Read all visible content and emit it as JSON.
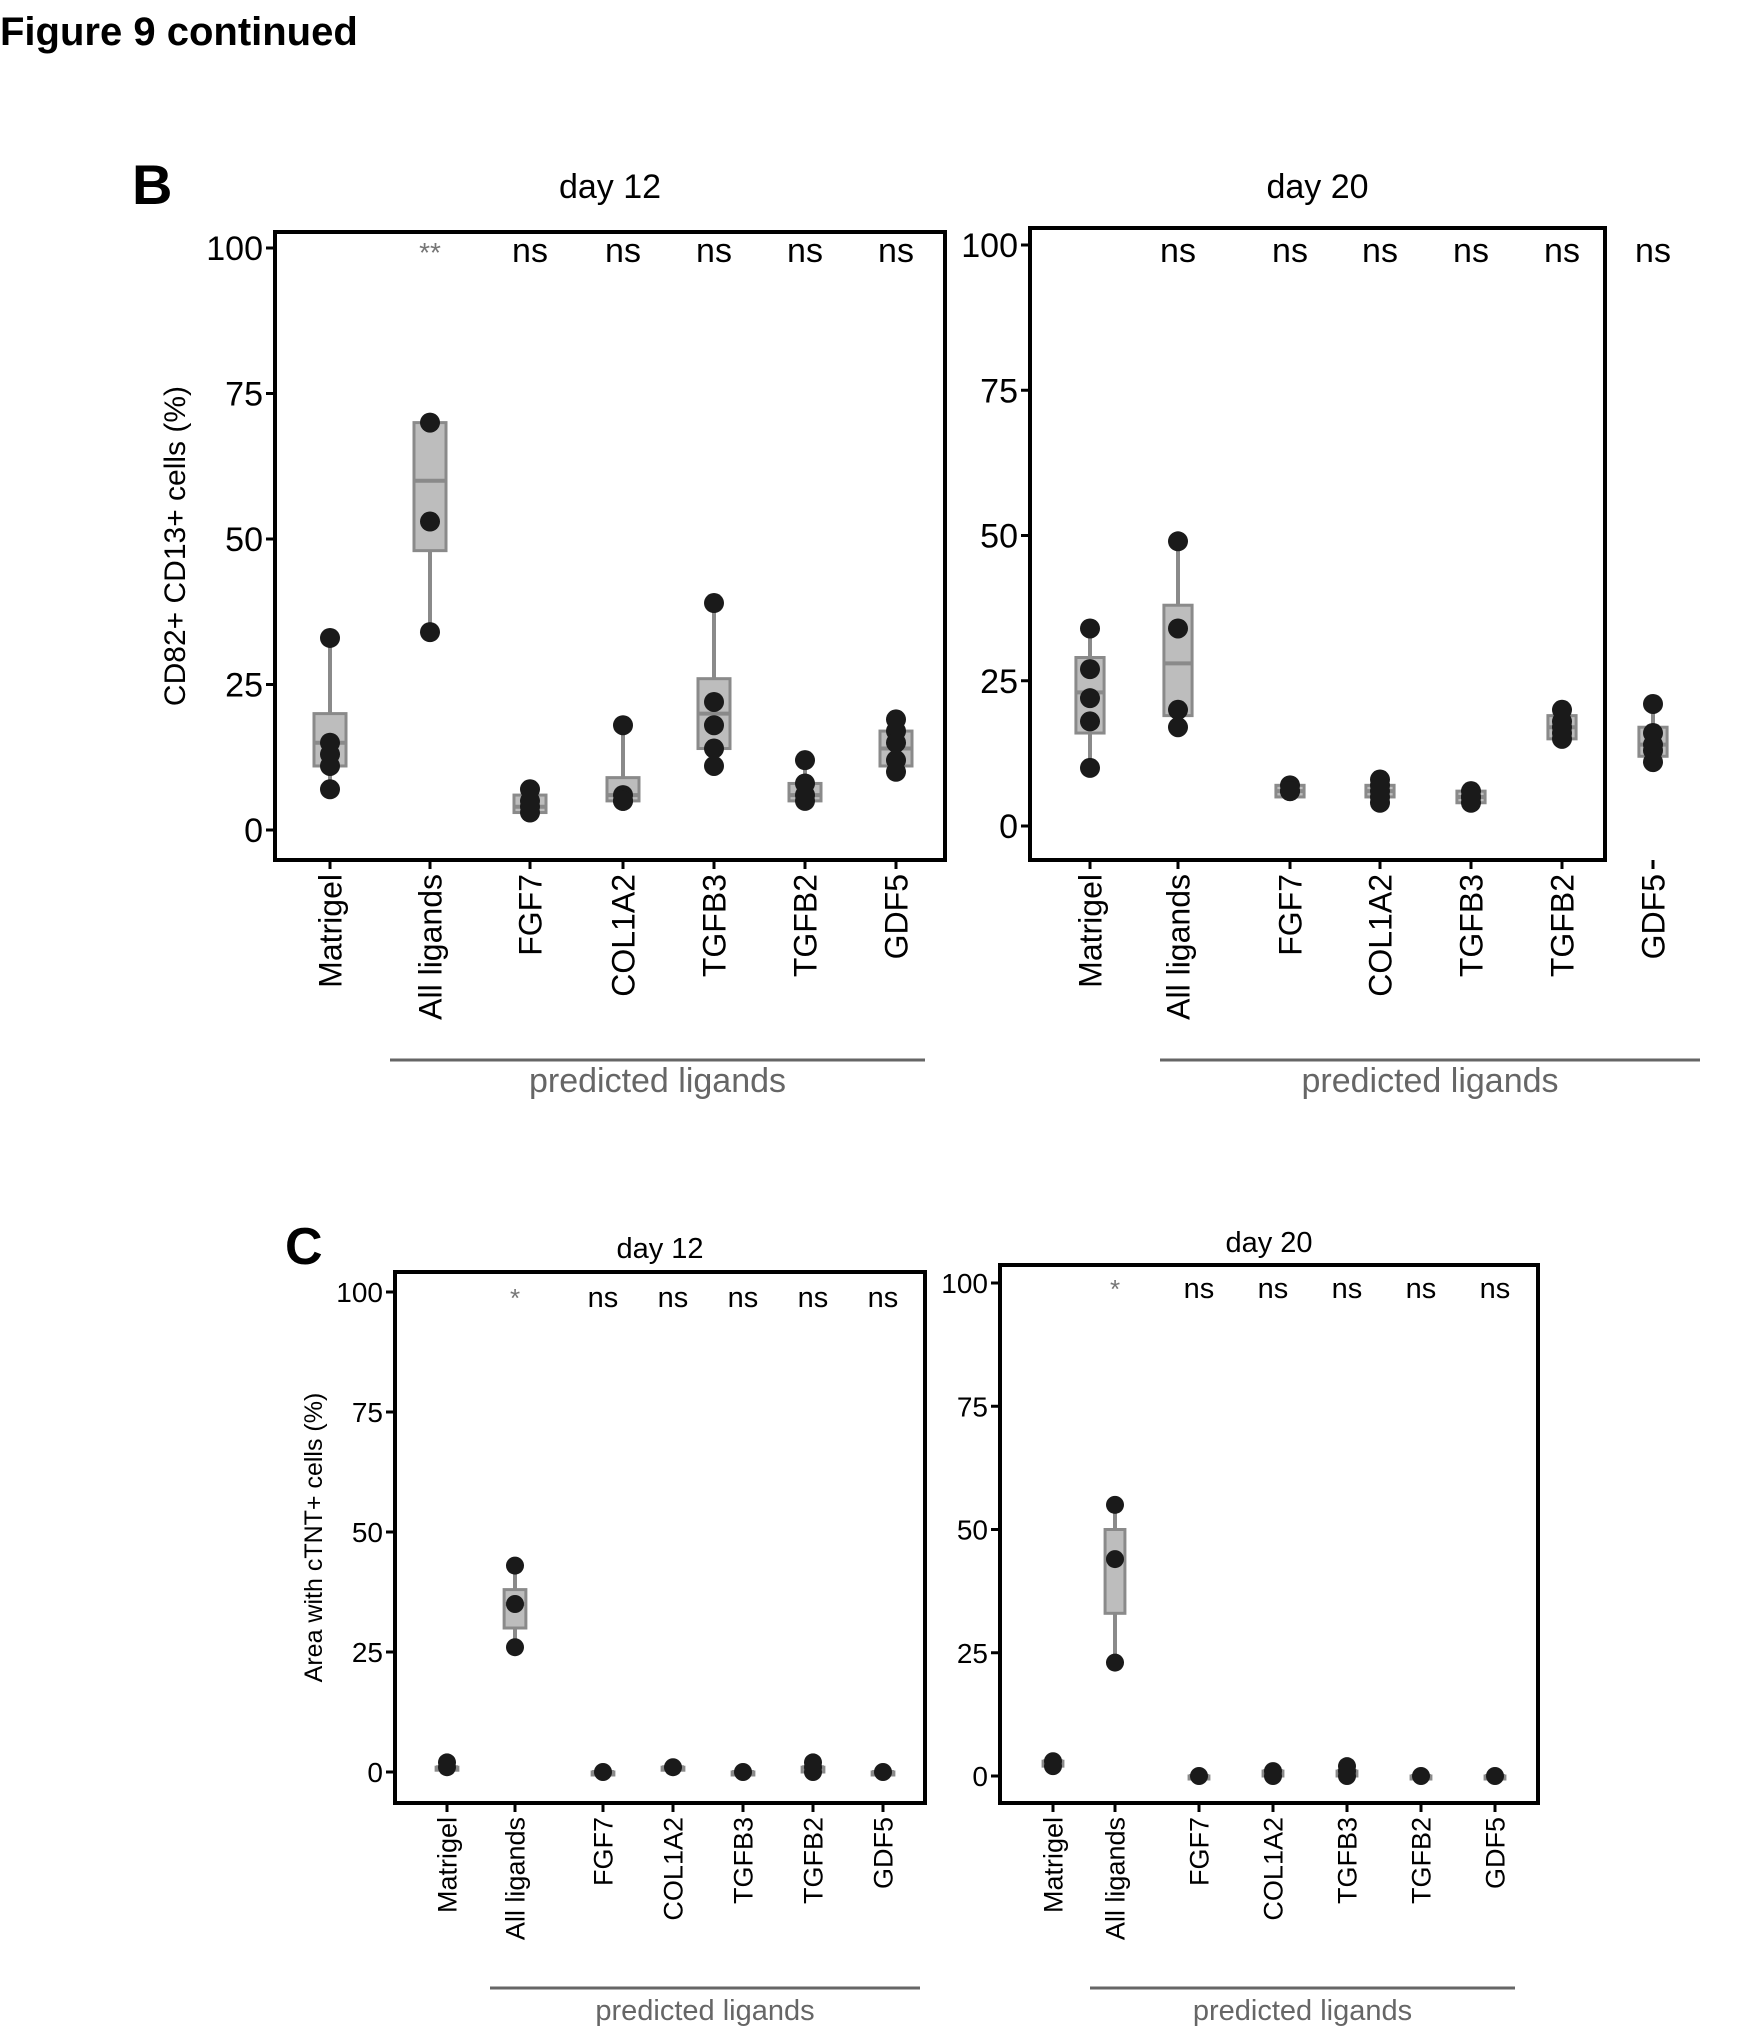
{
  "figure_title": "Figure 9 continued",
  "colors": {
    "box_fill": "#bdbdbd",
    "box_edge": "#8a8a8a",
    "point": "#1a1a1a",
    "frame": "#000000",
    "stars": "#777777",
    "label_gray": "#666666"
  },
  "chart_data": [
    {
      "type": "box",
      "panel_letter": "B",
      "title": "day 12",
      "ylabel": "CD82+ CD13+ cells (%)",
      "ylim": [
        0,
        100
      ],
      "yticks": [
        "0",
        "25",
        "50",
        "75",
        "100"
      ],
      "grid": false,
      "categories": [
        "Matrigel",
        "All ligands",
        "FGF7",
        "COL1A2",
        "TGFB3",
        "TGFB2",
        "GDF5"
      ],
      "significance": [
        "",
        "**",
        "ns",
        "ns",
        "ns",
        "ns",
        "ns"
      ],
      "group_label": "predicted ligands",
      "boxes": [
        {
          "min": 7,
          "q1": 11,
          "median": 15,
          "q3": 20,
          "max": 33
        },
        {
          "min": 34,
          "q1": 48,
          "median": 60,
          "q3": 70,
          "max": 70
        },
        {
          "min": 3,
          "q1": 3,
          "median": 4,
          "q3": 6,
          "max": 7
        },
        {
          "min": 5,
          "q1": 5,
          "median": 6,
          "q3": 9,
          "max": 18
        },
        {
          "min": 11,
          "q1": 14,
          "median": 20,
          "q3": 26,
          "max": 39
        },
        {
          "min": 5,
          "q1": 5,
          "median": 6,
          "q3": 8,
          "max": 12
        },
        {
          "min": 10,
          "q1": 11,
          "median": 14,
          "q3": 17,
          "max": 19
        }
      ],
      "points": [
        [
          33,
          15,
          13,
          11,
          7
        ],
        [
          70,
          53,
          34
        ],
        [
          7,
          5,
          4,
          3
        ],
        [
          18,
          6,
          5,
          5
        ],
        [
          39,
          22,
          18,
          14,
          11
        ],
        [
          12,
          8,
          6,
          5
        ],
        [
          19,
          17,
          15,
          12,
          10
        ]
      ]
    },
    {
      "type": "box",
      "panel_letter": "",
      "title": "day 20",
      "ylabel": "",
      "ylim": [
        0,
        100
      ],
      "yticks": [
        "0",
        "25",
        "50",
        "75",
        "100"
      ],
      "grid": false,
      "categories": [
        "Matrigel",
        "All ligands",
        "FGF7",
        "COL1A2",
        "TGFB3",
        "TGFB2",
        "GDF5"
      ],
      "significance": [
        "",
        "ns",
        "ns",
        "ns",
        "ns",
        "ns",
        "ns"
      ],
      "group_label": "predicted ligands",
      "boxes": [
        {
          "min": 10,
          "q1": 16,
          "median": 23,
          "q3": 29,
          "max": 34
        },
        {
          "min": 17,
          "q1": 19,
          "median": 28,
          "q3": 38,
          "max": 49
        },
        {
          "min": 5,
          "q1": 5,
          "median": 6,
          "q3": 7,
          "max": 7
        },
        {
          "min": 4,
          "q1": 5,
          "median": 6,
          "q3": 7,
          "max": 8
        },
        {
          "min": 4,
          "q1": 4,
          "median": 5,
          "q3": 6,
          "max": 6
        },
        {
          "min": 14,
          "q1": 15,
          "median": 17,
          "q3": 19,
          "max": 20
        },
        {
          "min": 11,
          "q1": 12,
          "median": 14,
          "q3": 17,
          "max": 21
        }
      ],
      "points": [
        [
          34,
          27,
          22,
          18,
          10
        ],
        [
          49,
          34,
          20,
          17
        ],
        [
          7,
          6,
          6
        ],
        [
          8,
          7,
          6,
          5,
          4
        ],
        [
          6,
          5,
          5,
          4
        ],
        [
          20,
          18,
          17,
          16,
          15
        ],
        [
          21,
          16,
          14,
          13,
          11
        ]
      ]
    },
    {
      "type": "box",
      "panel_letter": "C",
      "title": "day 12",
      "ylabel": "Area with cTNT+ cells (%)",
      "ylim": [
        0,
        100
      ],
      "yticks": [
        "0",
        "25",
        "50",
        "75",
        "100"
      ],
      "grid": false,
      "categories": [
        "Matrigel",
        "All ligands",
        "FGF7",
        "COL1A2",
        "TGFB3",
        "TGFB2",
        "GDF5"
      ],
      "significance": [
        "",
        "*",
        "ns",
        "ns",
        "ns",
        "ns",
        "ns"
      ],
      "group_label": "predicted ligands",
      "boxes": [
        {
          "min": 1,
          "q1": 1,
          "median": 1,
          "q3": 1,
          "max": 2
        },
        {
          "min": 26,
          "q1": 30,
          "median": 35,
          "q3": 38,
          "max": 43
        },
        {
          "min": 0,
          "q1": 0,
          "median": 0,
          "q3": 0,
          "max": 0
        },
        {
          "min": 1,
          "q1": 1,
          "median": 1,
          "q3": 1,
          "max": 1
        },
        {
          "min": 0,
          "q1": 0,
          "median": 0,
          "q3": 0,
          "max": 0
        },
        {
          "min": 0,
          "q1": 0,
          "median": 1,
          "q3": 1,
          "max": 2
        },
        {
          "min": 0,
          "q1": 0,
          "median": 0,
          "q3": 0,
          "max": 0
        }
      ],
      "points": [
        [
          2,
          1
        ],
        [
          43,
          35,
          26
        ],
        [
          0
        ],
        [
          1
        ],
        [
          0
        ],
        [
          2,
          1,
          0
        ],
        [
          0
        ]
      ]
    },
    {
      "type": "box",
      "panel_letter": "",
      "title": "day 20",
      "ylabel": "",
      "ylim": [
        0,
        100
      ],
      "yticks": [
        "0",
        "25",
        "50",
        "75",
        "100"
      ],
      "grid": false,
      "categories": [
        "Matrigel",
        "All ligands",
        "FGF7",
        "COL1A2",
        "TGFB3",
        "TGFB2",
        "GDF5"
      ],
      "significance": [
        "",
        "*",
        "ns",
        "ns",
        "ns",
        "ns",
        "ns"
      ],
      "group_label": "predicted ligands",
      "boxes": [
        {
          "min": 2,
          "q1": 2,
          "median": 3,
          "q3": 3,
          "max": 3
        },
        {
          "min": 23,
          "q1": 33,
          "median": 44,
          "q3": 50,
          "max": 55
        },
        {
          "min": 0,
          "q1": 0,
          "median": 0,
          "q3": 0,
          "max": 0
        },
        {
          "min": 0,
          "q1": 0,
          "median": 1,
          "q3": 1,
          "max": 1
        },
        {
          "min": 0,
          "q1": 0,
          "median": 1,
          "q3": 1,
          "max": 2
        },
        {
          "min": 0,
          "q1": 0,
          "median": 0,
          "q3": 0,
          "max": 0
        },
        {
          "min": 0,
          "q1": 0,
          "median": 0,
          "q3": 0,
          "max": 0
        }
      ],
      "points": [
        [
          3,
          2
        ],
        [
          55,
          44,
          23
        ],
        [
          0
        ],
        [
          1,
          0
        ],
        [
          2,
          1,
          0
        ],
        [
          0
        ],
        [
          0
        ]
      ]
    }
  ]
}
